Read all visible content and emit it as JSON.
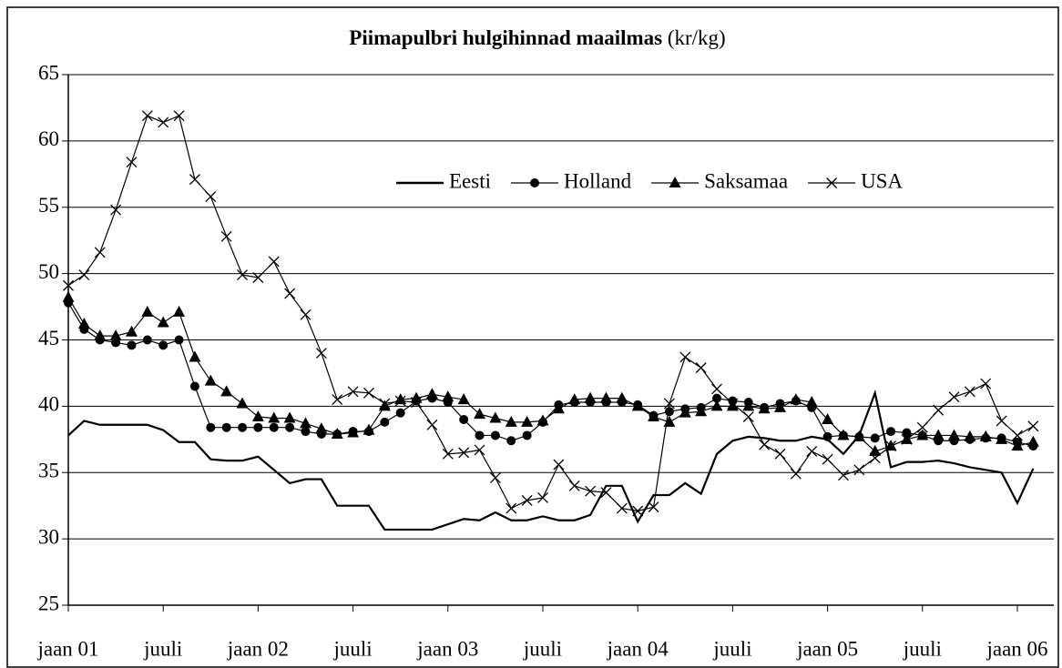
{
  "chart_data": {
    "type": "line",
    "title": "Piimapulbri hulgihinnad maailmas",
    "title_unit": "(kr/kg)",
    "categories": [
      "jaan 01",
      null,
      null,
      null,
      null,
      null,
      "juuli",
      null,
      null,
      null,
      null,
      null,
      "jaan 02",
      null,
      null,
      null,
      null,
      null,
      "juuli",
      null,
      null,
      null,
      null,
      null,
      "jaan 03",
      null,
      null,
      null,
      null,
      null,
      "juuli",
      null,
      null,
      null,
      null,
      null,
      "jaan 04",
      null,
      null,
      null,
      null,
      null,
      "juuli",
      null,
      null,
      null,
      null,
      null,
      "jaan 05",
      null,
      null,
      null,
      null,
      null,
      "juuli",
      null,
      null,
      null,
      null,
      null,
      "jaan 06",
      null
    ],
    "series": [
      {
        "name": "Eesti",
        "color": "#000000",
        "marker": "none",
        "values": [
          37.8,
          38.9,
          38.6,
          38.6,
          38.6,
          38.6,
          38.2,
          37.3,
          37.3,
          36.0,
          35.9,
          35.9,
          36.2,
          35.2,
          34.2,
          34.5,
          34.5,
          32.5,
          32.5,
          32.5,
          30.7,
          30.7,
          30.7,
          30.7,
          31.1,
          31.5,
          31.4,
          32.0,
          31.4,
          31.4,
          31.7,
          31.4,
          31.4,
          31.8,
          34.0,
          34.0,
          31.3,
          33.3,
          33.3,
          34.2,
          33.4,
          36.4,
          37.4,
          37.7,
          37.6,
          37.4,
          37.4,
          37.7,
          37.5,
          36.4,
          37.8,
          41.0,
          35.4,
          35.8,
          35.8,
          35.9,
          35.7,
          35.4,
          35.2,
          35.0,
          32.7,
          35.3
        ]
      },
      {
        "name": "Holland",
        "color": "#000000",
        "marker": "circle",
        "values": [
          47.8,
          45.8,
          45.0,
          44.8,
          44.6,
          45.0,
          44.6,
          45.0,
          41.5,
          38.4,
          38.4,
          38.4,
          38.4,
          38.4,
          38.4,
          38.1,
          37.9,
          37.9,
          38.1,
          38.1,
          38.8,
          39.5,
          40.4,
          40.6,
          40.3,
          39.0,
          37.8,
          37.8,
          37.4,
          37.8,
          38.8,
          40.1,
          40.3,
          40.3,
          40.3,
          40.3,
          40.1,
          39.3,
          39.6,
          39.8,
          39.9,
          40.6,
          40.4,
          40.3,
          39.9,
          40.2,
          40.4,
          39.9,
          37.7,
          37.8,
          37.7,
          37.6,
          38.1,
          38.0,
          37.8,
          37.4,
          37.4,
          37.5,
          37.6,
          37.6,
          37.3,
          37.0
        ]
      },
      {
        "name": "Saksamaa",
        "color": "#000000",
        "marker": "triangle",
        "values": [
          48.2,
          46.2,
          45.3,
          45.3,
          45.6,
          47.1,
          46.3,
          47.1,
          43.7,
          41.9,
          41.1,
          40.2,
          39.2,
          39.1,
          39.1,
          38.7,
          38.3,
          37.9,
          38.0,
          38.2,
          40.0,
          40.5,
          40.6,
          40.9,
          40.7,
          40.5,
          39.4,
          39.1,
          38.8,
          38.8,
          38.9,
          39.8,
          40.5,
          40.6,
          40.6,
          40.6,
          40.0,
          39.2,
          38.8,
          39.5,
          39.6,
          40.0,
          40.0,
          40.0,
          39.8,
          39.9,
          40.5,
          40.3,
          39.0,
          37.8,
          37.7,
          36.6,
          37.0,
          37.5,
          37.8,
          37.8,
          37.8,
          37.7,
          37.7,
          37.5,
          37.0,
          37.3
        ]
      },
      {
        "name": "USA",
        "color": "#000000",
        "marker": "x",
        "values": [
          49.1,
          49.9,
          51.6,
          54.8,
          58.4,
          61.9,
          61.4,
          61.9,
          57.1,
          55.8,
          52.8,
          49.9,
          49.7,
          50.9,
          48.5,
          46.9,
          44.0,
          40.5,
          41.1,
          41.0,
          40.2,
          40.4,
          40.3,
          38.6,
          36.4,
          36.5,
          36.7,
          34.6,
          32.3,
          32.9,
          33.1,
          35.6,
          34.0,
          33.6,
          33.5,
          32.3,
          32.1,
          32.4,
          40.2,
          43.7,
          42.9,
          41.3,
          40.2,
          39.2,
          37.1,
          36.4,
          34.9,
          36.6,
          36.0,
          34.8,
          35.2,
          36.1,
          37.0,
          37.5,
          38.4,
          39.7,
          40.7,
          41.1,
          41.7,
          38.9,
          37.8,
          38.5
        ]
      }
    ],
    "ylim": [
      25,
      65
    ],
    "yticks": [
      25,
      30,
      35,
      40,
      45,
      50,
      55,
      60,
      65
    ],
    "grid": true,
    "legend": "top-right"
  }
}
